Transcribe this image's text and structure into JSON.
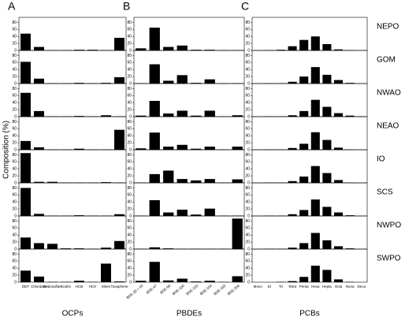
{
  "ylabel": "Composition (%)",
  "regions": [
    "NEPO",
    "GOM",
    "NWAO",
    "NEAO",
    "IO",
    "SCS",
    "NWPO",
    "SWPO"
  ],
  "chart_data": [
    {
      "type": "bar",
      "panel": "A",
      "xlabel": "OCPs",
      "color": "#000000",
      "categories": [
        "DDT",
        "Chlordane",
        "Endosulfan",
        "Endrin",
        "HCB",
        "HCH",
        "Mirex",
        "Toxaphene"
      ],
      "ylim": [
        0,
        90
      ],
      "yticks": [
        0,
        20,
        40,
        60,
        80
      ],
      "series": [
        {
          "values": [
            48,
            10,
            1,
            1,
            2,
            2,
            1,
            36
          ]
        },
        {
          "values": [
            62,
            14,
            1,
            1,
            2,
            1,
            2,
            18
          ]
        },
        {
          "values": [
            68,
            16,
            1,
            1,
            2,
            1,
            4,
            1
          ]
        },
        {
          "values": [
            25,
            7,
            1,
            1,
            3,
            1,
            1,
            57
          ]
        },
        {
          "values": [
            85,
            3,
            3,
            1,
            1,
            1,
            2,
            1
          ]
        },
        {
          "values": [
            80,
            6,
            1,
            1,
            2,
            1,
            1,
            5
          ]
        },
        {
          "values": [
            33,
            17,
            15,
            2,
            2,
            1,
            4,
            23
          ]
        },
        {
          "values": [
            33,
            16,
            1,
            1,
            4,
            1,
            53,
            2
          ]
        }
      ]
    },
    {
      "type": "bar",
      "panel": "B",
      "xlabel": "PBDEs",
      "color": "#000000",
      "categories": [
        "BDE-28 + 33",
        "BDE-47",
        "BDE-99",
        "BDE-100",
        "BDE-153",
        "BDE-154",
        "BDE-183",
        "BDE-209"
      ],
      "ylim": [
        0,
        90
      ],
      "yticks": [
        0,
        20,
        40,
        60,
        80
      ],
      "series": [
        {
          "values": [
            6,
            65,
            10,
            14,
            2,
            2,
            1,
            1
          ]
        },
        {
          "values": [
            1,
            55,
            8,
            24,
            2,
            12,
            1,
            1
          ]
        },
        {
          "values": [
            3,
            45,
            9,
            17,
            3,
            17,
            1,
            4
          ]
        },
        {
          "values": [
            4,
            49,
            9,
            14,
            3,
            9,
            1,
            9
          ]
        },
        {
          "values": [
            1,
            25,
            35,
            11,
            7,
            11,
            1,
            10
          ]
        },
        {
          "values": [
            1,
            45,
            10,
            18,
            4,
            21,
            1,
            1
          ]
        },
        {
          "values": [
            1,
            5,
            2,
            1,
            1,
            1,
            1,
            87
          ]
        },
        {
          "values": [
            4,
            58,
            5,
            10,
            2,
            4,
            1,
            17
          ]
        }
      ]
    },
    {
      "type": "bar",
      "panel": "C",
      "xlabel": "PCBs",
      "color": "#000000",
      "categories": [
        "Mono",
        "Di",
        "Tri",
        "Tetra",
        "Penta",
        "Hexa",
        "Hepta",
        "Octa",
        "Nona",
        "Deca"
      ],
      "ylim": [
        0,
        90
      ],
      "yticks": [
        0,
        20,
        40,
        60,
        80
      ],
      "series": [
        {
          "values": [
            0,
            1,
            2,
            12,
            30,
            40,
            18,
            3,
            1,
            0
          ]
        },
        {
          "values": [
            0,
            1,
            1,
            5,
            20,
            47,
            25,
            10,
            2,
            0
          ]
        },
        {
          "values": [
            0,
            1,
            1,
            4,
            16,
            48,
            28,
            10,
            3,
            1
          ]
        },
        {
          "values": [
            0,
            1,
            1,
            5,
            17,
            50,
            28,
            6,
            1,
            0
          ]
        },
        {
          "values": [
            0,
            1,
            1,
            5,
            18,
            48,
            28,
            8,
            1,
            0
          ]
        },
        {
          "values": [
            0,
            1,
            1,
            5,
            17,
            47,
            26,
            10,
            2,
            0
          ]
        },
        {
          "values": [
            0,
            1,
            1,
            4,
            17,
            46,
            25,
            8,
            2,
            0
          ]
        },
        {
          "values": [
            0,
            0,
            1,
            3,
            15,
            47,
            35,
            8,
            1,
            0
          ]
        }
      ]
    }
  ]
}
